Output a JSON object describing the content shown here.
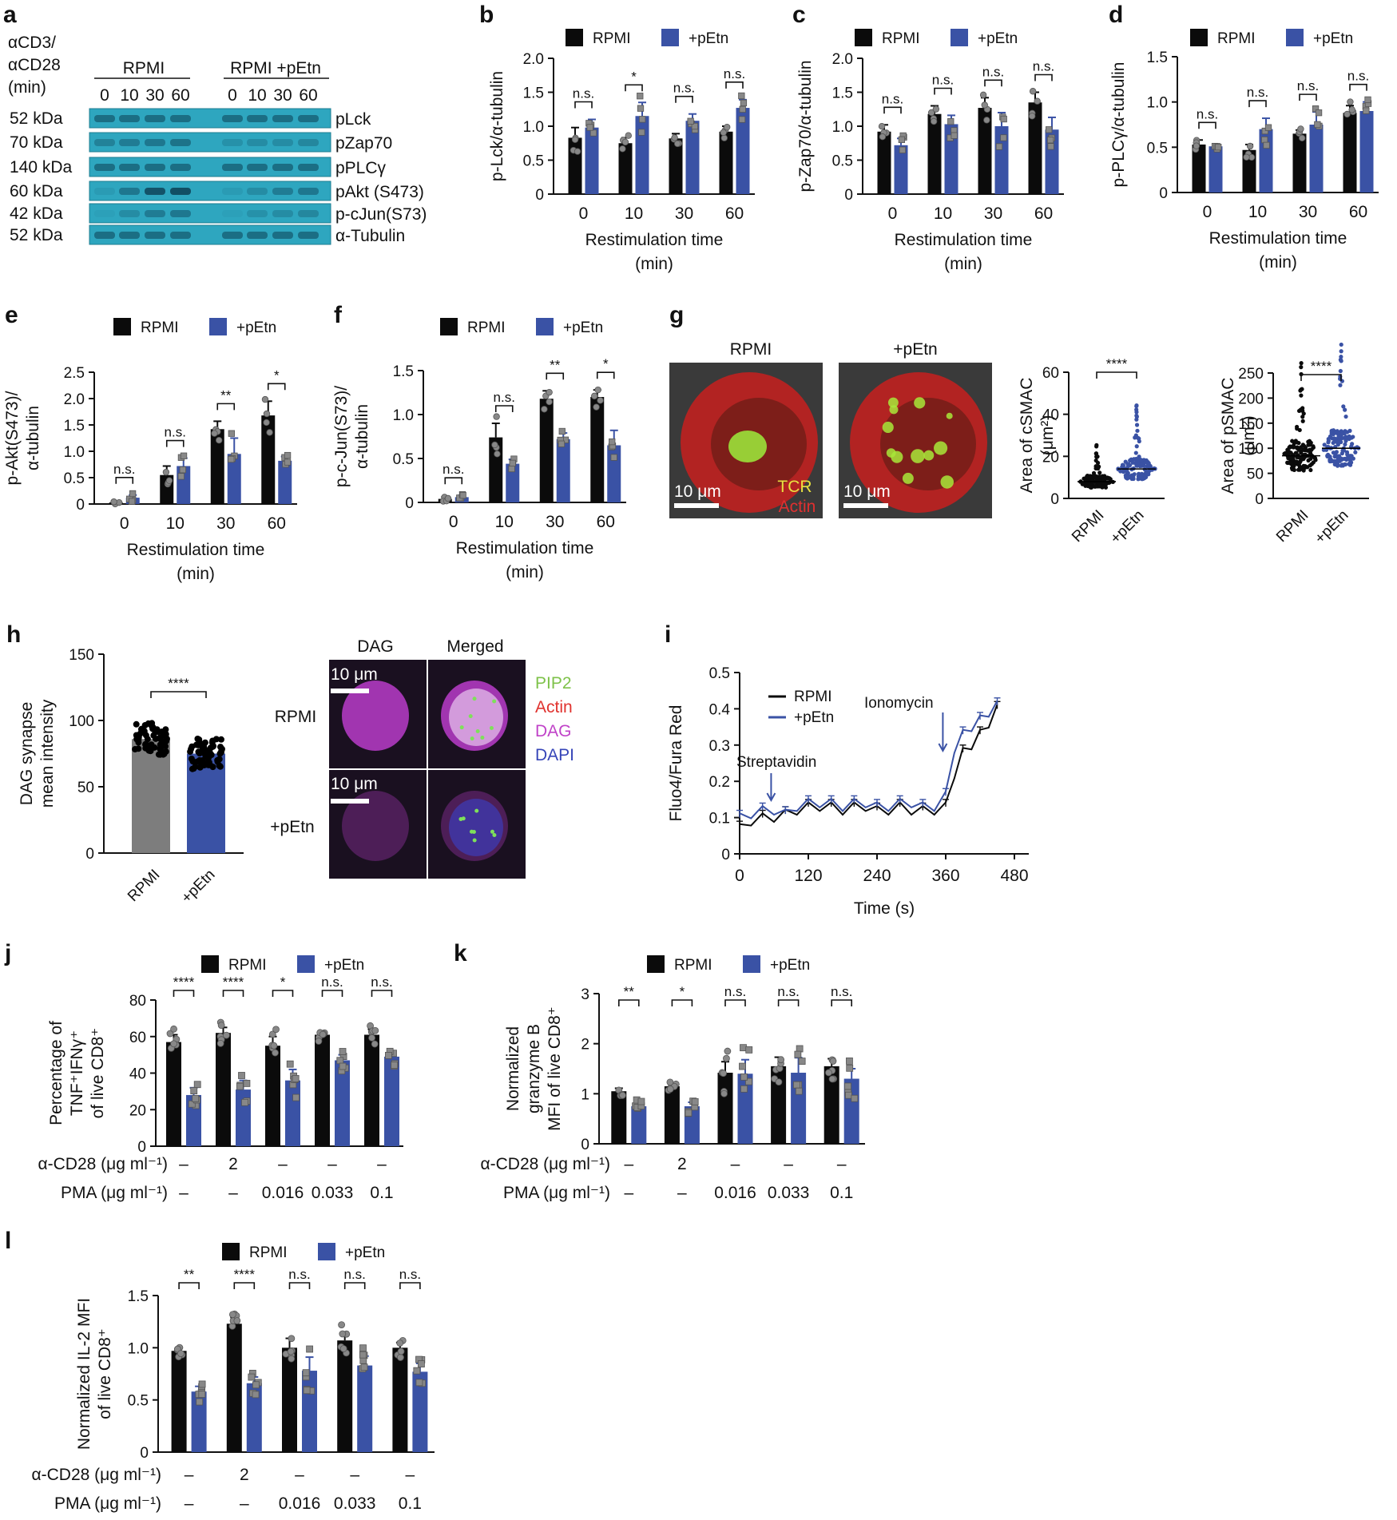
{
  "colors": {
    "rpmi": "#0b0b0b",
    "petn": "#3a52a5",
    "grey": "#7d7d7d",
    "blot": "#2ea6bf",
    "axis": "#111111"
  },
  "panel_a": {
    "letter": "a",
    "cond_label": "αCD3/\nαCD28\n(min)",
    "groups": [
      "RPMI",
      "RPMI +pEtn"
    ],
    "times": [
      "0",
      "10",
      "30",
      "60"
    ],
    "rows": [
      {
        "kda": "52 kDa",
        "name": "pLck"
      },
      {
        "kda": "70 kDa",
        "name": "pZap70"
      },
      {
        "kda": "140 kDa",
        "name": "pPLCγ"
      },
      {
        "kda": "60 kDa",
        "name": "pAkt (S473)"
      },
      {
        "kda": "42 kDa",
        "name": "p-cJun(S73)"
      },
      {
        "kda": "52 kDa",
        "name": "α-Tubulin"
      }
    ]
  },
  "panel_g": {
    "letter": "g",
    "img_labels": [
      "RPMI",
      "+pEtn"
    ],
    "scale": "10 μm",
    "channels": [
      "TCR",
      "Actin"
    ],
    "plot1": {
      "ylabel": "Area of cSMAC (μm²)",
      "yticks": [
        "0",
        "20",
        "40",
        "60"
      ],
      "ymax": 60,
      "medians": [
        8,
        14
      ],
      "sig": "****",
      "categories": [
        "RPMI",
        "+pEtn"
      ]
    },
    "plot2": {
      "ylabel": "Area of pSMAC (μm²)",
      "yticks": [
        "0",
        "50",
        "100",
        "150",
        "200",
        "250"
      ],
      "ymax": 250,
      "medians": [
        85,
        100
      ],
      "sig": "****",
      "categories": [
        "RPMI",
        "+pEtn"
      ]
    }
  },
  "panel_h": {
    "letter": "h",
    "col_labels": [
      "DAG",
      "Merged"
    ],
    "row_labels": [
      "RPMI",
      "+pEtn"
    ],
    "scale": "10 μm",
    "channels": [
      "PIP2",
      "Actin",
      "DAG",
      "DAPI"
    ],
    "channel_colors": [
      "#7ec24a",
      "#e0322e",
      "#c042c8",
      "#3645b8"
    ]
  },
  "chart_data": [
    {
      "id": "b",
      "type": "bar",
      "title": "",
      "xlabel": "Restimulation time\n(min)",
      "ylabel": "p-Lck/α-tubulin",
      "categories": [
        "0",
        "10",
        "30",
        "60"
      ],
      "ylim": [
        0,
        2.0
      ],
      "yticks": [
        "0",
        "0.5",
        "1.0",
        "1.5",
        "2.0"
      ],
      "series": [
        {
          "name": "RPMI",
          "values": [
            0.83,
            0.75,
            0.82,
            0.92
          ],
          "errors": [
            0.15,
            0.08,
            0.07,
            0.08
          ]
        },
        {
          "name": "+pEtn",
          "values": [
            0.98,
            1.15,
            1.08,
            1.27
          ],
          "errors": [
            0.12,
            0.2,
            0.1,
            0.12
          ]
        }
      ],
      "significance": [
        "n.s.",
        "*",
        "n.s.",
        "n.s."
      ]
    },
    {
      "id": "c",
      "type": "bar",
      "title": "",
      "xlabel": "Restimulation time\n(min)",
      "ylabel": "p-Zap70/α-tubulin",
      "categories": [
        "0",
        "10",
        "30",
        "60"
      ],
      "ylim": [
        0,
        2.0
      ],
      "yticks": [
        "0",
        "0.5",
        "1.0",
        "1.5",
        "2.0"
      ],
      "series": [
        {
          "name": "RPMI",
          "values": [
            0.92,
            1.18,
            1.27,
            1.35
          ],
          "errors": [
            0.1,
            0.12,
            0.15,
            0.15
          ]
        },
        {
          "name": "+pEtn",
          "values": [
            0.72,
            1.03,
            1.0,
            0.95
          ],
          "errors": [
            0.1,
            0.13,
            0.2,
            0.18
          ]
        }
      ],
      "significance": [
        "n.s.",
        "n.s.",
        "n.s.",
        "n.s."
      ]
    },
    {
      "id": "d",
      "type": "bar",
      "title": "",
      "xlabel": "Restimulation time\n(min)",
      "ylabel": "p-PLCγ/α-tubulin",
      "categories": [
        "0",
        "10",
        "30",
        "60"
      ],
      "ylim": [
        0,
        1.5
      ],
      "yticks": [
        "0",
        "0.5",
        "1.0",
        "1.5"
      ],
      "series": [
        {
          "name": "RPMI",
          "values": [
            0.53,
            0.47,
            0.65,
            0.88
          ],
          "errors": [
            0.05,
            0.06,
            0.04,
            0.08
          ]
        },
        {
          "name": "+pEtn",
          "values": [
            0.51,
            0.7,
            0.75,
            0.9
          ],
          "errors": [
            0.02,
            0.12,
            0.14,
            0.1
          ]
        }
      ],
      "significance": [
        "n.s.",
        "n.s.",
        "n.s.",
        "n.s."
      ]
    },
    {
      "id": "e",
      "type": "bar",
      "title": "",
      "xlabel": "Restimulation time\n(min)",
      "ylabel": "p-Akt(S473)/\nα-tubulin",
      "categories": [
        "0",
        "10",
        "30",
        "60"
      ],
      "ylim": [
        0,
        2.5
      ],
      "yticks": [
        "0",
        "0.5",
        "1.0",
        "1.5",
        "2.0",
        "2.5"
      ],
      "series": [
        {
          "name": "RPMI",
          "values": [
            0.03,
            0.55,
            1.42,
            1.68
          ],
          "errors": [
            0.02,
            0.17,
            0.15,
            0.27
          ]
        },
        {
          "name": "+pEtn",
          "values": [
            0.12,
            0.72,
            0.95,
            0.82
          ],
          "errors": [
            0.05,
            0.15,
            0.3,
            0.08
          ]
        }
      ],
      "significance": [
        "n.s.",
        "n.s.",
        "**",
        "*"
      ]
    },
    {
      "id": "f",
      "type": "bar",
      "title": "",
      "xlabel": "Restimulation time\n(min)",
      "ylabel": "p-c-Jun(S73)/\nα-tubulin",
      "categories": [
        "0",
        "10",
        "30",
        "60"
      ],
      "ylim": [
        0,
        1.5
      ],
      "yticks": [
        "0",
        "0.5",
        "1.0",
        "1.5"
      ],
      "series": [
        {
          "name": "RPMI",
          "values": [
            0.04,
            0.74,
            1.18,
            1.2
          ],
          "errors": [
            0.02,
            0.16,
            0.09,
            0.08
          ]
        },
        {
          "name": "+pEtn",
          "values": [
            0.06,
            0.44,
            0.72,
            0.65
          ],
          "errors": [
            0.02,
            0.05,
            0.07,
            0.17
          ]
        }
      ],
      "significance": [
        "n.s.",
        "n.s.",
        "**",
        "*"
      ]
    },
    {
      "id": "h",
      "type": "bar",
      "title": "",
      "xlabel": "",
      "ylabel": "DAG synapse\nmean intensity",
      "categories": [
        "RPMI",
        "+pEtn"
      ],
      "ylim": [
        0,
        150
      ],
      "yticks": [
        "0",
        "50",
        "100",
        "150"
      ],
      "values": [
        86,
        75
      ],
      "significance": [
        "****"
      ]
    },
    {
      "id": "i",
      "type": "line",
      "title": "",
      "xlabel": "Time (s)",
      "ylabel": "Fluo4/Fura Red",
      "xlim": [
        0,
        480
      ],
      "ylim": [
        0,
        0.5
      ],
      "xticks": [
        "0",
        "120",
        "240",
        "360",
        "480"
      ],
      "yticks": [
        "0",
        "0.1",
        "0.2",
        "0.3",
        "0.4",
        "0.5"
      ],
      "annotations": [
        {
          "text": "Streptavidin",
          "x": 55
        },
        {
          "text": "Ionomycin",
          "x": 355
        }
      ],
      "series": [
        {
          "name": "RPMI",
          "x": [
            0,
            20,
            40,
            60,
            80,
            100,
            120,
            140,
            160,
            180,
            200,
            220,
            240,
            260,
            280,
            300,
            320,
            340,
            360,
            375,
            390,
            405,
            420,
            435,
            450
          ],
          "y": [
            0.07,
            0.09,
            0.1,
            0.1,
            0.11,
            0.12,
            0.13,
            0.13,
            0.13,
            0.12,
            0.13,
            0.13,
            0.12,
            0.12,
            0.13,
            0.12,
            0.12,
            0.12,
            0.13,
            0.22,
            0.28,
            0.3,
            0.33,
            0.36,
            0.4
          ]
        },
        {
          "name": "+pEtn",
          "x": [
            0,
            20,
            40,
            60,
            80,
            100,
            120,
            140,
            160,
            180,
            200,
            220,
            240,
            260,
            280,
            300,
            320,
            340,
            360,
            375,
            390,
            405,
            420,
            435,
            450
          ],
          "y": [
            0.1,
            0.11,
            0.12,
            0.12,
            0.11,
            0.13,
            0.14,
            0.14,
            0.14,
            0.13,
            0.14,
            0.14,
            0.13,
            0.13,
            0.14,
            0.14,
            0.13,
            0.13,
            0.16,
            0.29,
            0.33,
            0.35,
            0.37,
            0.39,
            0.41
          ]
        }
      ]
    },
    {
      "id": "j",
      "type": "bar",
      "title": "",
      "xlabel": "",
      "ylabel": "Percentage of\nTNF⁺IFNγ⁺\nof live CD8⁺",
      "ylim": [
        0,
        80
      ],
      "yticks": [
        "0",
        "20",
        "40",
        "60",
        "80"
      ],
      "row_labels": [
        "α-CD28 (μg ml⁻¹)",
        "PMA (μg ml⁻¹)"
      ],
      "cd28": [
        "–",
        "2",
        "–",
        "–",
        "–"
      ],
      "pma": [
        "–",
        "–",
        "0.016",
        "0.033",
        "0.1"
      ],
      "series": [
        {
          "name": "RPMI",
          "values": [
            57,
            62,
            55,
            61,
            61
          ],
          "errors": [
            4,
            3,
            5,
            2,
            3
          ]
        },
        {
          "name": "+pEtn",
          "values": [
            28,
            31,
            36,
            47,
            49
          ],
          "errors": [
            4,
            5,
            6,
            3,
            3
          ]
        }
      ],
      "significance": [
        "****",
        "****",
        "*",
        "n.s.",
        "n.s."
      ]
    },
    {
      "id": "k",
      "type": "bar",
      "title": "",
      "xlabel": "",
      "ylabel": "Normalized\ngranzyme B\nMFI of live CD8⁺",
      "ylim": [
        0,
        3
      ],
      "yticks": [
        "0",
        "1",
        "2",
        "3"
      ],
      "row_labels": [
        "α-CD28 (μg ml⁻¹)",
        "PMA (μg ml⁻¹)"
      ],
      "cd28": [
        "–",
        "2",
        "–",
        "–",
        "–"
      ],
      "pma": [
        "–",
        "–",
        "0.016",
        "0.033",
        "0.1"
      ],
      "series": [
        {
          "name": "RPMI",
          "values": [
            1.05,
            1.15,
            1.42,
            1.55,
            1.55
          ],
          "errors": [
            0.06,
            0.06,
            0.22,
            0.18,
            0.15
          ]
        },
        {
          "name": "+pEtn",
          "values": [
            0.75,
            0.75,
            1.4,
            1.42,
            1.3
          ],
          "errors": [
            0.07,
            0.08,
            0.28,
            0.3,
            0.2
          ]
        }
      ],
      "significance": [
        "**",
        "*",
        "n.s.",
        "n.s.",
        "n.s."
      ]
    },
    {
      "id": "l",
      "type": "bar",
      "title": "",
      "xlabel": "",
      "ylabel": "Normalized IL-2 MFI\nof live CD8⁺",
      "ylim": [
        0,
        1.5
      ],
      "yticks": [
        "0",
        "0.5",
        "1.0",
        "1.5"
      ],
      "row_labels": [
        "α-CD28 (μg ml⁻¹)",
        "PMA (μg ml⁻¹)"
      ],
      "cd28": [
        "–",
        "2",
        "–",
        "–",
        "–"
      ],
      "pma": [
        "–",
        "–",
        "0.016",
        "0.033",
        "0.1"
      ],
      "series": [
        {
          "name": "RPMI",
          "values": [
            0.97,
            1.23,
            1.0,
            1.07,
            1.0
          ],
          "errors": [
            0.03,
            0.06,
            0.09,
            0.08,
            0.05
          ]
        },
        {
          "name": "+pEtn",
          "values": [
            0.58,
            0.66,
            0.78,
            0.83,
            0.77
          ],
          "errors": [
            0.05,
            0.06,
            0.13,
            0.09,
            0.08
          ]
        }
      ],
      "significance": [
        "**",
        "****",
        "n.s.",
        "n.s.",
        "n.s."
      ]
    }
  ]
}
